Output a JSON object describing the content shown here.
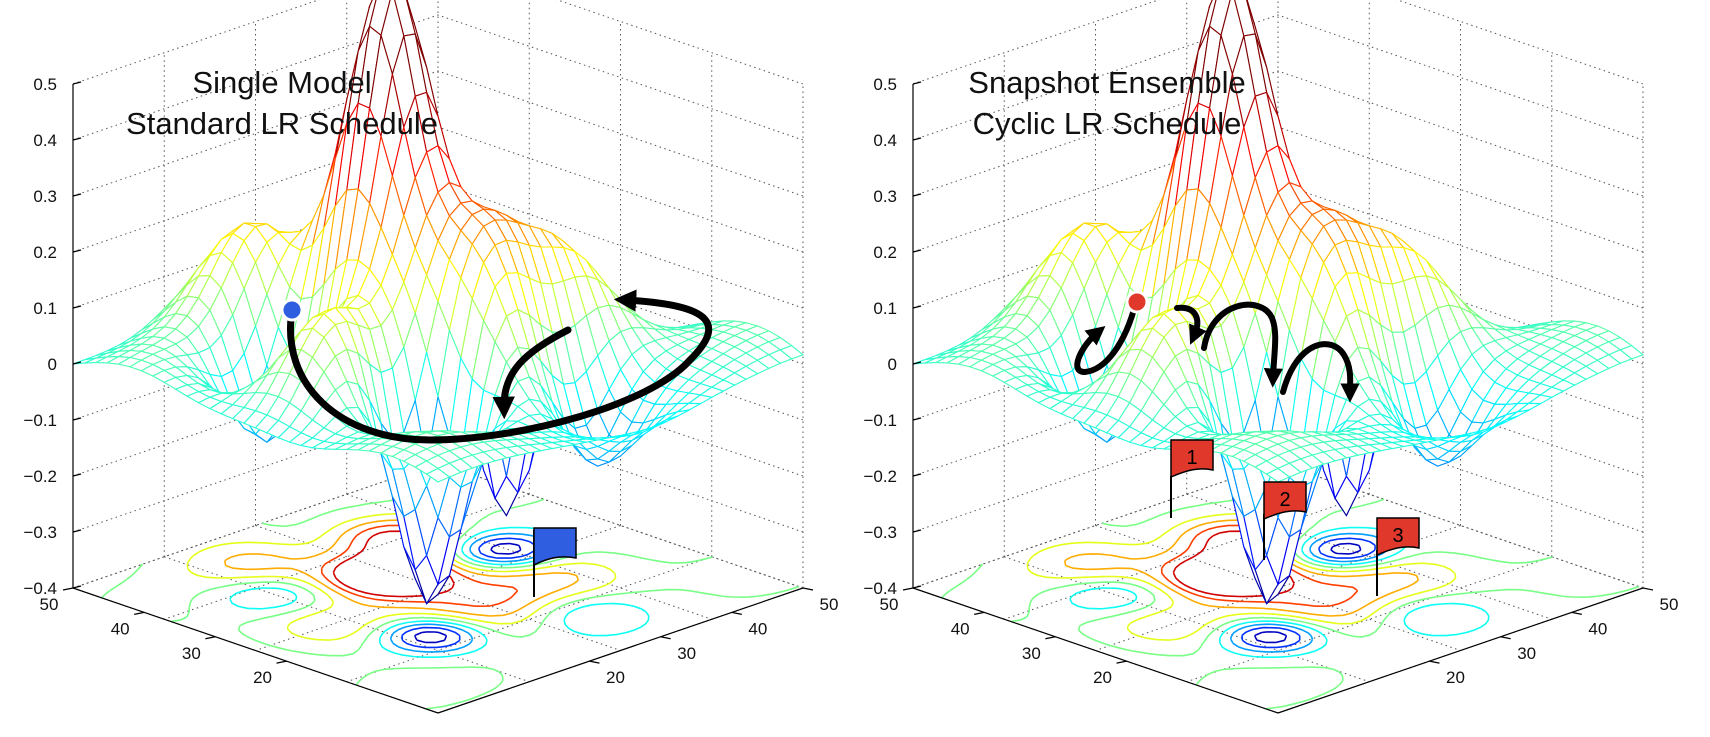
{
  "chart_data": [
    {
      "type": "surface",
      "title": "Single Model",
      "subtitle": "Standard LR Schedule",
      "z_ticks": [
        "0.5",
        "0.4",
        "0.3",
        "0.2",
        "0.1",
        "0",
        "-0.1",
        "-0.2",
        "-0.3",
        "-0.4"
      ],
      "zlim": [
        -0.4,
        0.5
      ],
      "x_ticks": [
        "20",
        "30",
        "40",
        "50"
      ],
      "y_ticks": [
        "20",
        "30",
        "40",
        "50"
      ],
      "grid": true,
      "colormap": "jet",
      "start_marker": {
        "color": "#2f5fe0"
      },
      "path": "single continuous trajectory from the starting point down into one minimum",
      "flags": [
        {
          "label": "",
          "color": "#2f5fe0"
        }
      ]
    },
    {
      "type": "surface",
      "title": "Snapshot Ensemble",
      "subtitle": "Cyclic LR Schedule",
      "z_ticks": [
        "0.5",
        "0.4",
        "0.3",
        "0.2",
        "0.1",
        "0",
        "-0.1",
        "-0.2",
        "-0.3",
        "-0.4"
      ],
      "zlim": [
        -0.4,
        0.5
      ],
      "x_ticks": [
        "20",
        "30",
        "40",
        "50"
      ],
      "y_ticks": [
        "20",
        "30",
        "40",
        "50"
      ],
      "grid": true,
      "colormap": "jet",
      "start_marker": {
        "color": "#e0392b"
      },
      "path": "several short hops visiting multiple minima",
      "flags": [
        {
          "label": "1",
          "color": "#e0392b"
        },
        {
          "label": "2",
          "color": "#e0392b"
        },
        {
          "label": "3",
          "color": "#e0392b"
        }
      ]
    }
  ]
}
